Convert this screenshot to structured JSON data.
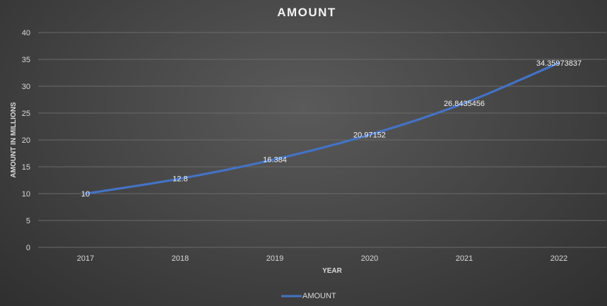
{
  "chart_data": {
    "type": "line",
    "title": "AMOUNT",
    "xlabel": "YEAR",
    "ylabel": "AMOUNT IN MILLIONS",
    "categories": [
      "2017",
      "2018",
      "2019",
      "2020",
      "2021",
      "2022"
    ],
    "series": [
      {
        "name": "AMOUNT",
        "values": [
          10,
          12.8,
          16.384,
          20.97152,
          26.8435456,
          34.35973837
        ],
        "data_labels": [
          "10",
          "12.8",
          "16.384",
          "20.97152",
          "26.8435456",
          "34.35973837"
        ],
        "color": "#4472c4"
      }
    ],
    "yticks": [
      "0",
      "5",
      "10",
      "15",
      "20",
      "25",
      "30",
      "35",
      "40"
    ],
    "ylim": [
      0,
      40
    ],
    "grid": true,
    "legend": "bottom"
  }
}
